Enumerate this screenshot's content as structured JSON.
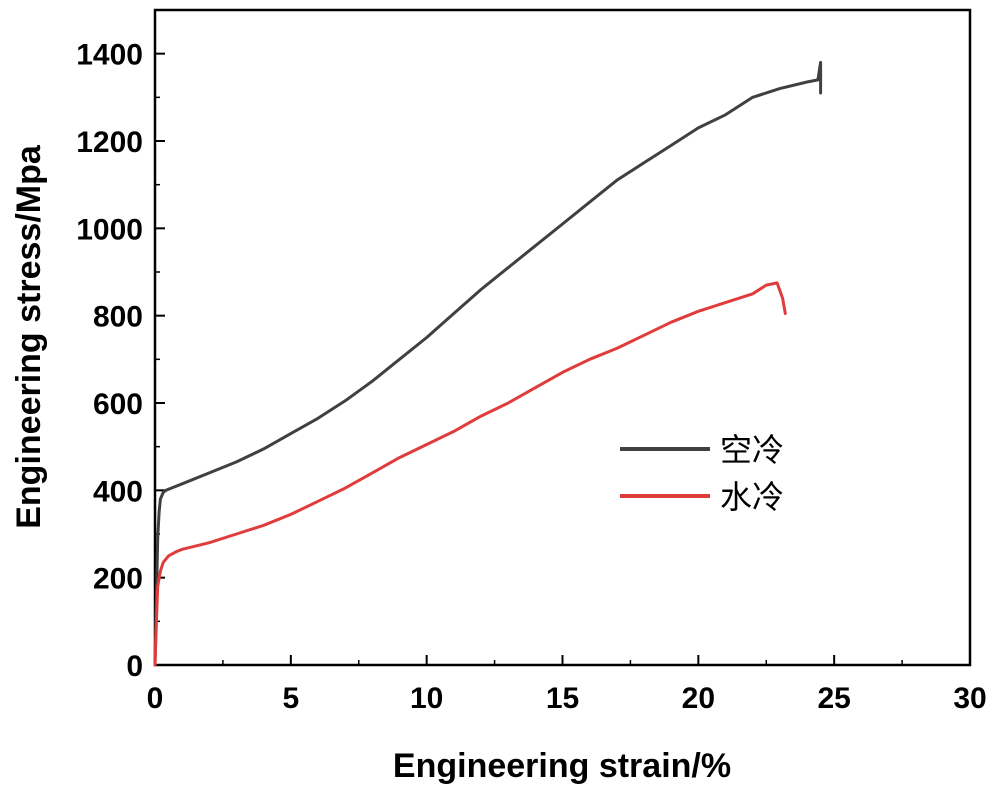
{
  "chart_data": {
    "type": "line",
    "title": "",
    "xlabel": "Engineering strain/%",
    "ylabel": "Engineering stress/Mpa",
    "xlim": [
      0,
      30
    ],
    "ylim": [
      0,
      1500
    ],
    "xticks": [
      0,
      5,
      10,
      15,
      20,
      25,
      30
    ],
    "yticks": [
      0,
      200,
      400,
      600,
      800,
      1000,
      1200,
      1400
    ],
    "xtick_labels": [
      "0",
      "5",
      "10",
      "15",
      "20",
      "25",
      "30"
    ],
    "ytick_labels": [
      "0",
      "200",
      "400",
      "600",
      "800",
      "1000",
      "1200",
      "1400"
    ],
    "grid": false,
    "legend_position": "center-right",
    "series": [
      {
        "name": "空冷",
        "color": "#404040",
        "x": [
          0,
          0.05,
          0.1,
          0.15,
          0.2,
          0.3,
          0.4,
          0.6,
          1.0,
          2,
          3,
          4,
          5,
          6,
          7,
          8,
          9,
          10,
          11,
          12,
          13,
          14,
          15,
          16,
          17,
          18,
          19,
          20,
          21,
          22,
          23,
          24,
          24.4,
          24.5,
          24.5
        ],
        "y": [
          0,
          150,
          290,
          350,
          380,
          395,
          400,
          405,
          415,
          440,
          465,
          495,
          530,
          565,
          605,
          650,
          700,
          750,
          805,
          860,
          910,
          960,
          1010,
          1060,
          1110,
          1150,
          1190,
          1230,
          1260,
          1300,
          1320,
          1335,
          1340,
          1380,
          1310
        ]
      },
      {
        "name": "水冷",
        "color": "#e03c3c",
        "x": [
          0,
          0.05,
          0.1,
          0.2,
          0.3,
          0.5,
          0.8,
          1,
          2,
          3,
          4,
          5,
          6,
          7,
          8,
          9,
          10,
          11,
          12,
          13,
          14,
          15,
          16,
          17,
          18,
          19,
          20,
          21,
          22,
          22.5,
          22.9,
          23.1,
          23.2
        ],
        "y": [
          0,
          100,
          180,
          215,
          235,
          250,
          260,
          265,
          280,
          300,
          320,
          345,
          375,
          405,
          440,
          475,
          505,
          535,
          570,
          600,
          635,
          670,
          700,
          725,
          755,
          785,
          810,
          830,
          850,
          870,
          875,
          840,
          805
        ]
      }
    ]
  }
}
